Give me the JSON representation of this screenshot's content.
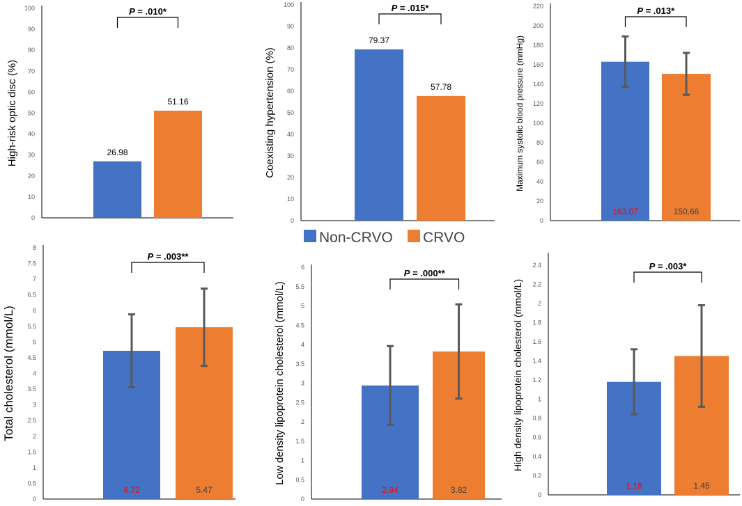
{
  "legend": {
    "items": [
      {
        "label": "Non-CRVO",
        "color": "#4472C4"
      },
      {
        "label": "CRVO",
        "color": "#ED7D31"
      }
    ]
  },
  "chart_data": [
    {
      "type": "bar",
      "ylabel": "High-risk optic disc (%)",
      "categories": [
        "Non-CRVO",
        "CRVO"
      ],
      "values": [
        26.98,
        51.16
      ],
      "value_labels": [
        "26.98",
        "51.16"
      ],
      "ylim": [
        0,
        100
      ],
      "yticks": [
        0,
        10,
        20,
        30,
        40,
        50,
        60,
        70,
        80,
        90,
        100
      ],
      "ytick_labels": [
        "0",
        "10",
        "20",
        "30",
        "40",
        "50",
        "60",
        "70",
        "80",
        "90",
        "100"
      ],
      "significance": "P = .010*",
      "colors": [
        "#4472C4",
        "#ED7D31"
      ]
    },
    {
      "type": "bar",
      "ylabel": "Coexisting hypertension (%)",
      "categories": [
        "Non-CRVO",
        "CRVO"
      ],
      "values": [
        79.37,
        57.78
      ],
      "value_labels": [
        "79.37",
        "57.78"
      ],
      "ylim": [
        0,
        100
      ],
      "yticks": [
        0,
        10,
        20,
        30,
        40,
        50,
        60,
        70,
        80,
        90,
        100
      ],
      "ytick_labels": [
        "0",
        "10",
        "20",
        "30",
        "40",
        "50",
        "60",
        "70",
        "80",
        "90",
        "100"
      ],
      "significance": "P = .015*",
      "colors": [
        "#4472C4",
        "#ED7D31"
      ]
    },
    {
      "type": "bar",
      "ylabel": "Maximum systolic blood pressure (mmHg)",
      "categories": [
        "Non-CRVO",
        "CRVO"
      ],
      "values": [
        163.07,
        150.66
      ],
      "errors": [
        26,
        21.5
      ],
      "value_labels": [
        "163.07",
        "150.66"
      ],
      "ylim": [
        0,
        220
      ],
      "yticks": [
        0,
        20,
        40,
        60,
        80,
        100,
        120,
        140,
        160,
        180,
        200,
        220
      ],
      "ytick_labels": [
        "0",
        "20",
        "40",
        "60",
        "80",
        "100",
        "120",
        "140",
        "160",
        "180",
        "200",
        "220"
      ],
      "significance": "P = .013*",
      "colors": [
        "#4472C4",
        "#ED7D31"
      ]
    },
    {
      "type": "bar",
      "ylabel": "Total cholesterol  (mmol/L)",
      "categories": [
        "Non-CRVO",
        "CRVO"
      ],
      "values": [
        4.72,
        5.47
      ],
      "errors": [
        1.16,
        1.23
      ],
      "value_labels": [
        "4.72",
        "5.47"
      ],
      "ylim": [
        0,
        8
      ],
      "yticks": [
        0,
        0.5,
        1,
        1.5,
        2,
        2.5,
        3,
        3.5,
        4,
        4.5,
        5,
        5.5,
        6,
        6.5,
        7,
        7.5,
        8
      ],
      "ytick_labels": [
        "0",
        "0.5",
        "1",
        "1.5",
        "2",
        "2.5",
        "3",
        "3.5",
        "4",
        "4.5",
        "5",
        "5.5",
        "6",
        "6.5",
        "7",
        "7.5",
        "8"
      ],
      "significance": "P = .003**",
      "colors": [
        "#4472C4",
        "#ED7D31"
      ]
    },
    {
      "type": "bar",
      "ylabel": "Low density lipoprotein cholesterol (mmol/L)",
      "categories": [
        "Non-CRVO",
        "CRVO"
      ],
      "values": [
        2.94,
        3.82
      ],
      "errors": [
        1.02,
        1.22
      ],
      "value_labels": [
        "2.94",
        "3.82"
      ],
      "ylim": [
        0,
        6
      ],
      "yticks": [
        0,
        0.5,
        1,
        1.5,
        2,
        2.5,
        3,
        3.5,
        4,
        4.5,
        5,
        5.5,
        6
      ],
      "ytick_labels": [
        "0",
        "0.5",
        "1",
        "1.5",
        "2",
        "2.5",
        "3",
        "3.5",
        "4",
        "4.5",
        "5",
        "5.5",
        "6"
      ],
      "significance": "P = .000**",
      "colors": [
        "#4472C4",
        "#ED7D31"
      ]
    },
    {
      "type": "bar",
      "ylabel": "High density lipoprotein cholesterol (mmol/L)",
      "categories": [
        "Non-CRVO",
        "CRVO"
      ],
      "values": [
        1.18,
        1.45
      ],
      "errors": [
        0.34,
        0.53
      ],
      "value_labels": [
        "1.18",
        "1.45"
      ],
      "ylim": [
        0,
        2.5
      ],
      "yticks": [
        0,
        0.2,
        0.4,
        0.6,
        0.8,
        1,
        1.2,
        1.4,
        1.6,
        1.8,
        2,
        2.2,
        2.4
      ],
      "ytick_labels": [
        "0",
        "0.2",
        "0.4",
        "0.6",
        "0.8",
        "1",
        "1.2",
        "1.4",
        "1.6",
        "1.8",
        "2",
        "2.2",
        "2.4"
      ],
      "significance": "P = .003*",
      "colors": [
        "#4472C4",
        "#ED7D31"
      ]
    }
  ]
}
